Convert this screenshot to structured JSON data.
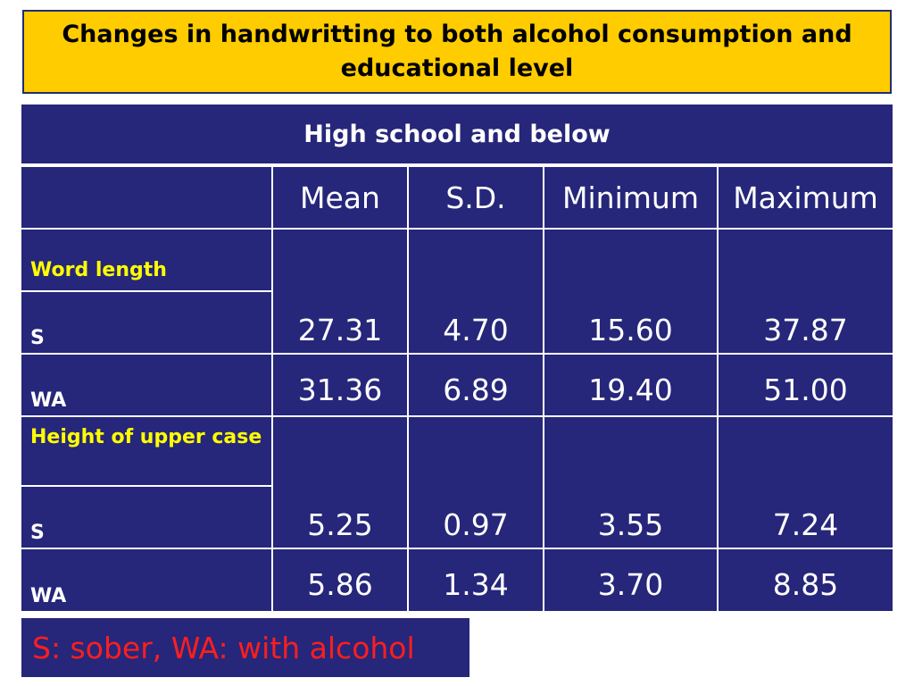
{
  "title": "Changes in handwritting to both alcohol consumption and educational level",
  "table": {
    "header": "High school and below",
    "columns": [
      "Mean",
      "S.D.",
      "Minimum",
      "Maximum"
    ],
    "groups": [
      {
        "label": "Word length",
        "rows": [
          {
            "label": "S",
            "values": [
              "27.31",
              "4.70",
              "15.60",
              "37.87"
            ]
          },
          {
            "label": "WA",
            "values": [
              "31.36",
              "6.89",
              "19.40",
              "51.00"
            ]
          }
        ]
      },
      {
        "label": "Height of upper case",
        "rows": [
          {
            "label": "S",
            "values": [
              "5.25",
              "0.97",
              "3.55",
              "7.24"
            ]
          },
          {
            "label": "WA",
            "values": [
              "5.86",
              "1.34",
              "3.70",
              "8.85"
            ]
          }
        ]
      }
    ]
  },
  "legend": "S: sober, WA: with alcohol",
  "colors": {
    "title_bg": "#FFCC00",
    "table_bg": "#26267A",
    "group_label": "#FFFF00",
    "legend_text": "#FF1E1E"
  }
}
